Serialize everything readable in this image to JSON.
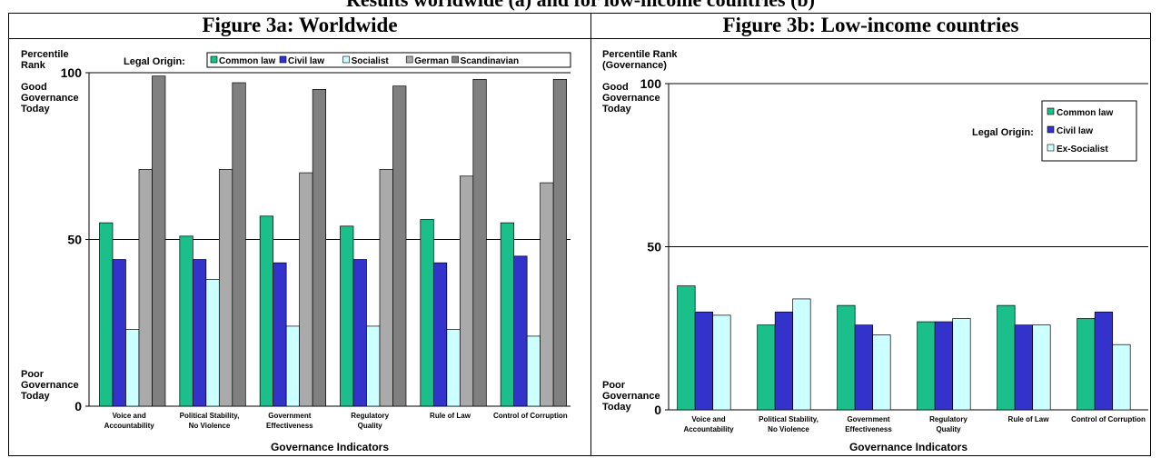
{
  "suptitle": "Results worldwide (a) and for low-income countries (b)",
  "chart_data": [
    {
      "type": "bar",
      "title": "Figure 3a: Worldwide",
      "ylabel": "Percentile Rank",
      "y_top_note": "Good Governance Today",
      "y_bottom_note": "Poor Governance Today",
      "xlabel": "Governance Indicators",
      "legend_title": "Legal Origin:",
      "ylim": [
        0,
        100
      ],
      "yticks": [
        "0",
        "50",
        "100"
      ],
      "legend_position": "top",
      "categories": [
        "Voice and Accountability",
        "Political Stability, No Violence",
        "Government Effectiveness",
        "Regulatory Quality",
        "Rule of Law",
        "Control of Corruption"
      ],
      "series": [
        {
          "name": "Common law",
          "color": "#1bbf8a",
          "values": [
            55,
            51,
            57,
            54,
            56,
            55
          ]
        },
        {
          "name": "Civil law",
          "color": "#3333cc",
          "values": [
            44,
            44,
            43,
            44,
            43,
            45
          ]
        },
        {
          "name": "Socialist",
          "color": "#ccffff",
          "values": [
            23,
            38,
            24,
            24,
            23,
            21
          ]
        },
        {
          "name": "German",
          "color": "#aaaaaa",
          "values": [
            71,
            71,
            70,
            71,
            69,
            67
          ]
        },
        {
          "name": "Scandinavian",
          "color": "#808080",
          "values": [
            99,
            97,
            95,
            96,
            98,
            98
          ]
        }
      ]
    },
    {
      "type": "bar",
      "title": "Figure 3b: Low-income countries",
      "ylabel": "Percentile Rank (Governance)",
      "y_top_note": "Good Governance Today",
      "y_bottom_note": "Poor Governance Today",
      "xlabel": "Governance Indicators",
      "legend_title": "Legal Origin:",
      "ylim": [
        0,
        100
      ],
      "yticks": [
        "0",
        "50",
        "100"
      ],
      "legend_position": "right",
      "categories": [
        "Voice and Accountability",
        "Political Stability, No Violence",
        "Government Effectiveness",
        "Regulatory Quality",
        "Rule of Law",
        "Control of Corruption"
      ],
      "series": [
        {
          "name": "Common law",
          "color": "#1bbf8a",
          "values": [
            38,
            26,
            32,
            27,
            32,
            28
          ]
        },
        {
          "name": "Civil law",
          "color": "#3333cc",
          "values": [
            30,
            30,
            26,
            27,
            26,
            30
          ]
        },
        {
          "name": "Ex-Socialist",
          "color": "#ccffff",
          "values": [
            29,
            34,
            23,
            28,
            26,
            20
          ]
        }
      ]
    }
  ]
}
